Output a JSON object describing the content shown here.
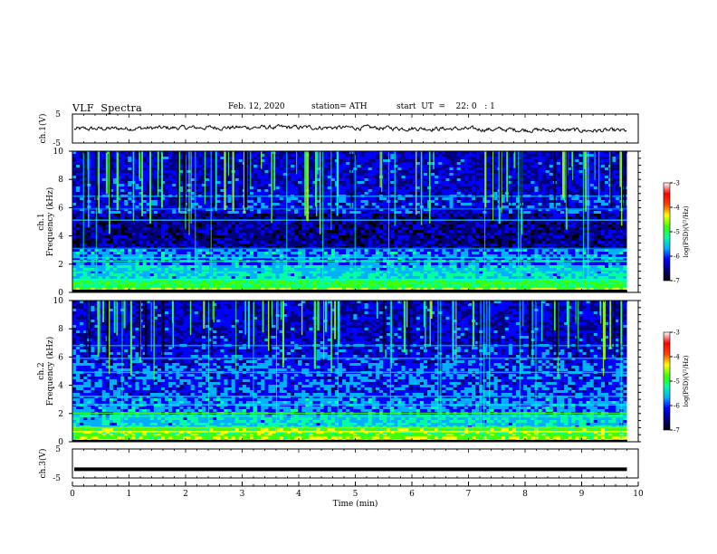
{
  "header": {
    "title": "VLF  Spectra",
    "date": "Feb. 12, 2020",
    "station": "station= ATH",
    "start": "start  UT  =    22: 0   : 1"
  },
  "chart_data": [
    {
      "type": "line",
      "panel": "ch1-waveform",
      "ylabel": "ch.1(V)",
      "ylim": [
        -5,
        5
      ],
      "yticks": [
        "5",
        "-5"
      ],
      "note": "noisy waveform near 0 V across 0-9.8 min"
    },
    {
      "type": "heatmap",
      "panel": "ch1-spectrogram",
      "ylabel_lines": [
        "ch.1",
        "Frequency  (kHz)"
      ],
      "ylim": [
        0,
        10
      ],
      "yticks": [
        "0",
        "2",
        "4",
        "6",
        "8",
        "10"
      ],
      "colorbar": {
        "label": "log(PSD)(V²/Hz)",
        "range": [
          -7,
          -3
        ],
        "ticks": [
          "-3",
          "-4",
          "-5",
          "-6",
          "-7"
        ],
        "colors": [
          "#000000",
          "#00007f",
          "#0000ff",
          "#00b0ff",
          "#00ffa0",
          "#40ff00",
          "#ffff00",
          "#ff4000",
          "#ff0000",
          "#ffffff"
        ]
      }
    },
    {
      "type": "heatmap",
      "panel": "ch2-spectrogram",
      "ylabel_lines": [
        "ch.2",
        "Frequency  (kHz)"
      ],
      "ylim": [
        0,
        10
      ],
      "yticks": [
        "0",
        "2",
        "4",
        "6",
        "8",
        "10"
      ],
      "colorbar": {
        "label": "log(PSD)(V²/Hz)",
        "range": [
          -7,
          -3
        ],
        "ticks": [
          "-3",
          "-4",
          "-5",
          "-6",
          "-7"
        ]
      }
    },
    {
      "type": "line",
      "panel": "ch3-waveform",
      "ylabel": "ch.3(V)",
      "ylim": [
        -5,
        5
      ],
      "yticks": [
        "5",
        "-5"
      ],
      "note": "flat saturated trace near -2 V"
    }
  ],
  "xaxis": {
    "label": "Time  (min)",
    "xlim": [
      0,
      10
    ],
    "ticks": [
      "0",
      "1",
      "2",
      "3",
      "4",
      "5",
      "6",
      "7",
      "8",
      "9",
      "10"
    ],
    "data_end": 9.8
  }
}
